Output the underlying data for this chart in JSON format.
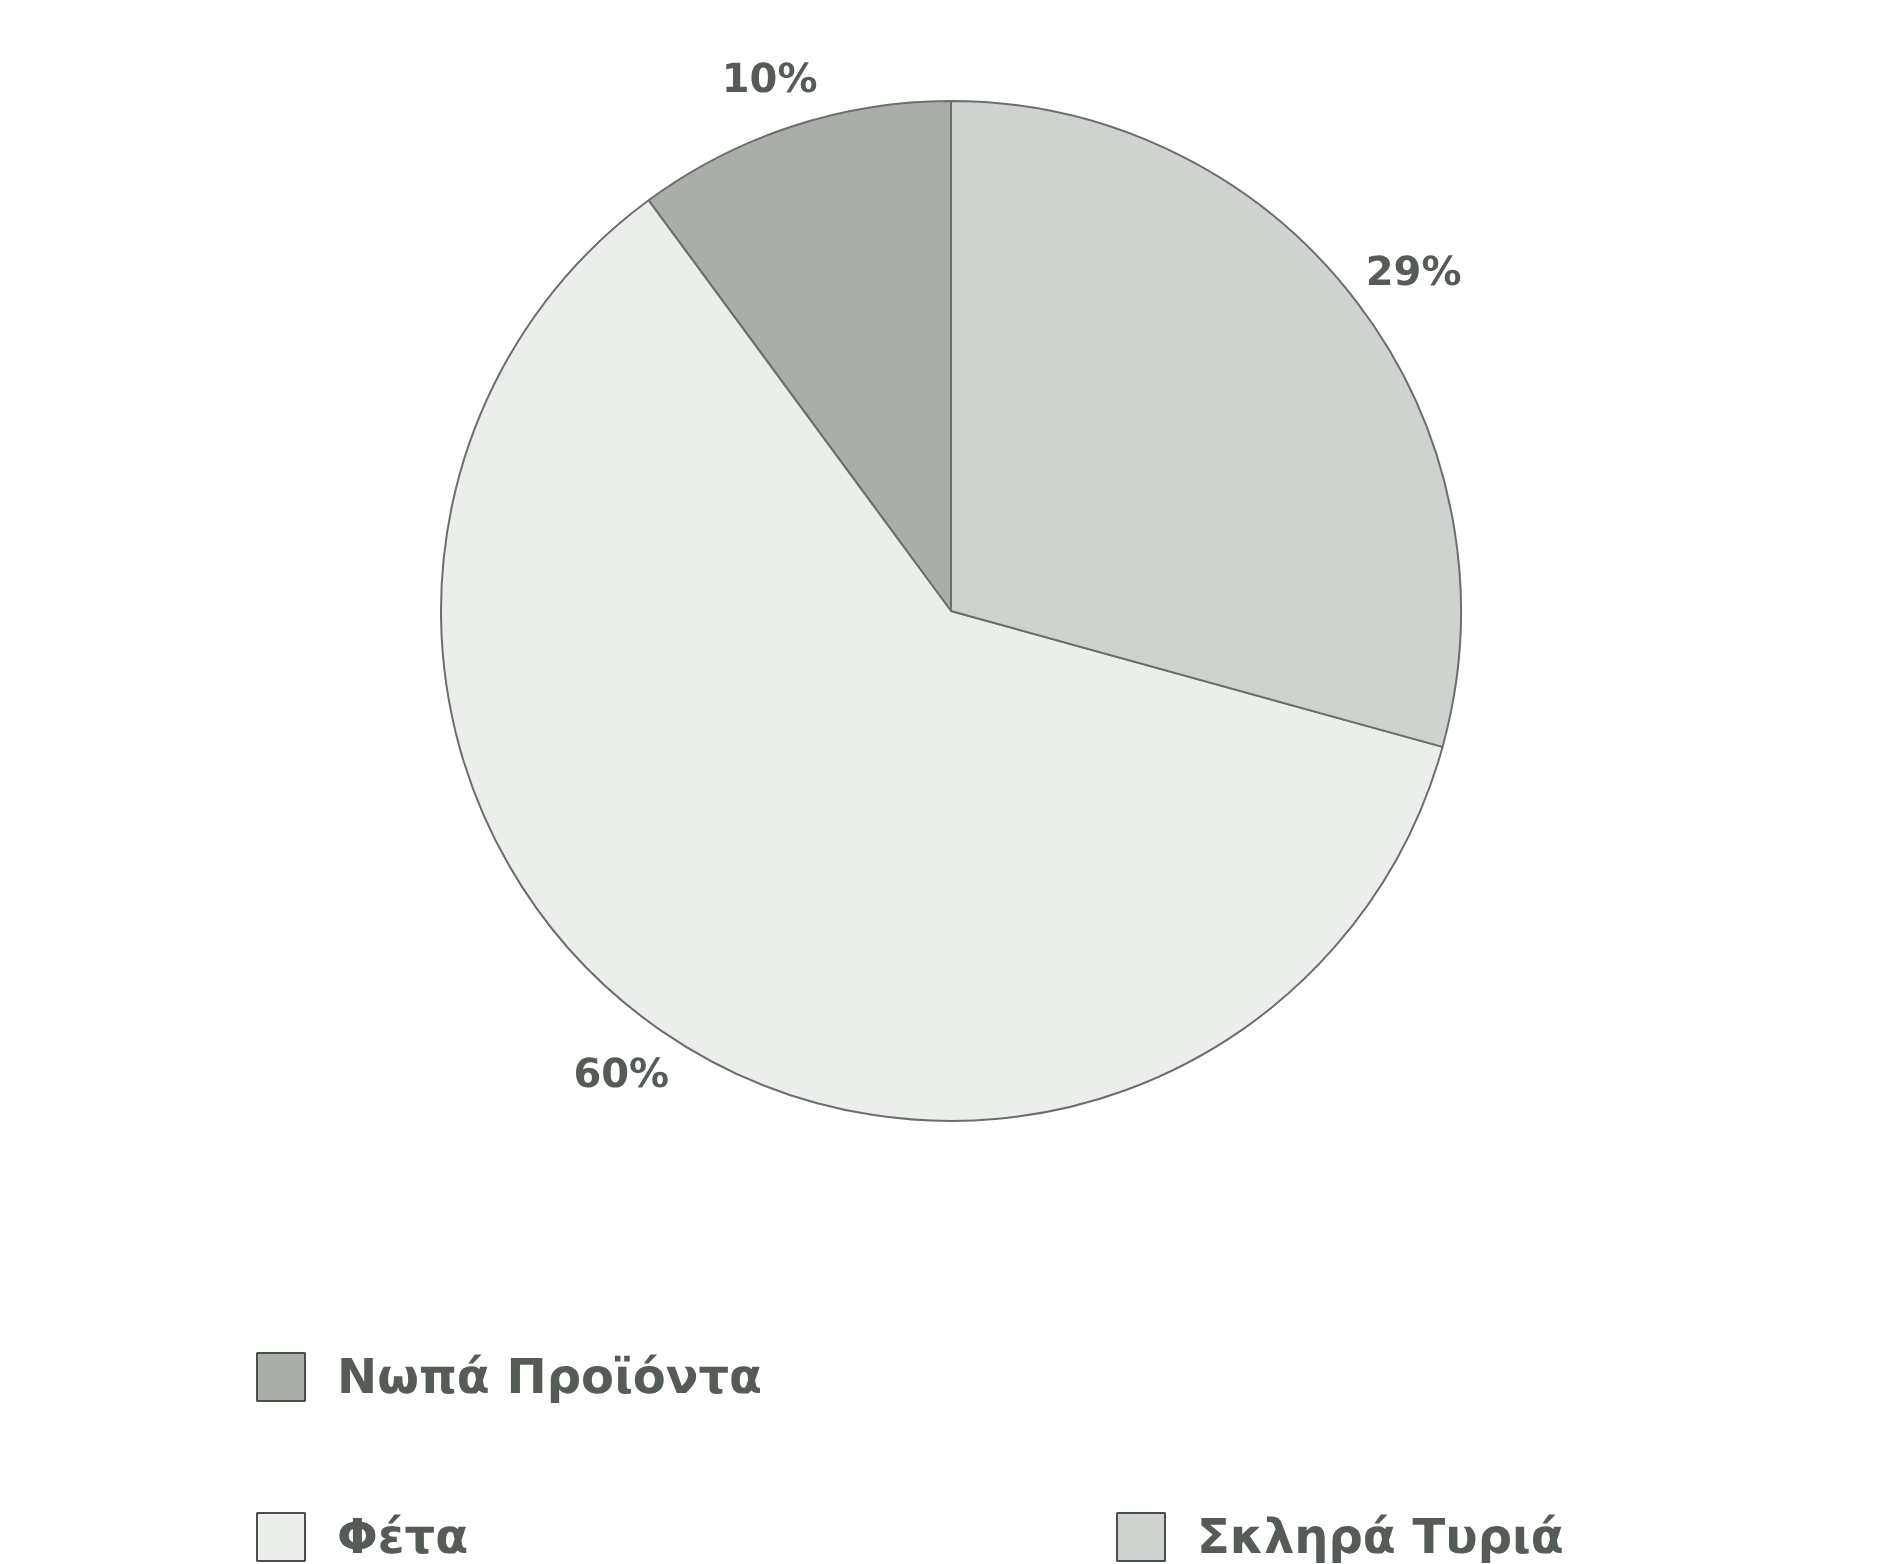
{
  "chart_data": {
    "type": "pie",
    "categories": [
      "Νωπά Προϊόντα",
      "Φέτα",
      "Σκληρά Τυριά"
    ],
    "values": [
      10,
      60,
      29
    ],
    "colors": [
      "#a9aea9",
      "#eceeec",
      "#cfd3cf"
    ],
    "value_labels": [
      "10%",
      "60%",
      "29%"
    ],
    "legend": "bottom"
  }
}
